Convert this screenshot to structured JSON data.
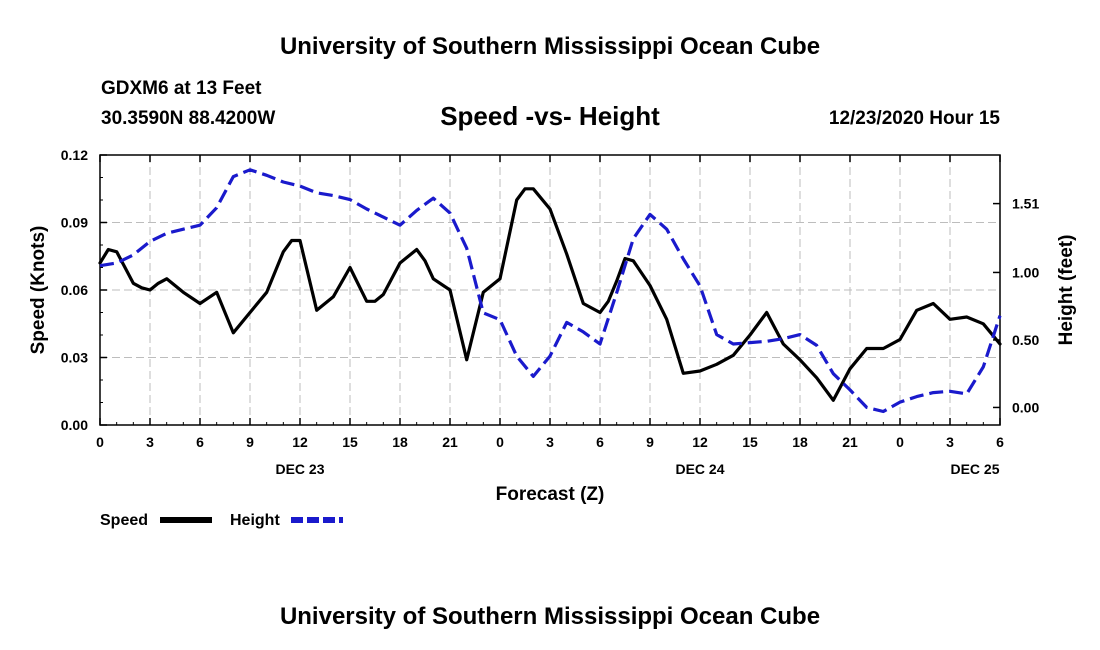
{
  "header": {
    "title": "University of Southern Mississippi Ocean Cube",
    "station": "GDXM6 at 13 Feet",
    "coords": "30.3590N 88.4200W",
    "chart_title": "Speed -vs- Height",
    "datetime": "12/23/2020 Hour 15"
  },
  "footer": {
    "title": "University of Southern Mississippi Ocean Cube"
  },
  "colors": {
    "speed": "#000000",
    "height": "#1a1acc",
    "grid": "#bdbdbd"
  },
  "chart_data": {
    "type": "line",
    "title": "Speed -vs- Height",
    "xlabel": "Forecast (Z)",
    "ylabel": "Speed (Knots)",
    "y2label": "Height (feet)",
    "xlim": [
      0,
      54
    ],
    "ylim": [
      0,
      0.12
    ],
    "y2lim": [
      -0.13,
      1.87
    ],
    "x_ticks": [
      0,
      3,
      6,
      9,
      12,
      15,
      18,
      21,
      24,
      27,
      30,
      33,
      36,
      39,
      42,
      45,
      48,
      51,
      54
    ],
    "x_tick_labels": [
      "0",
      "3",
      "6",
      "9",
      "12",
      "15",
      "18",
      "21",
      "0",
      "3",
      "6",
      "9",
      "12",
      "15",
      "18",
      "21",
      "0",
      "3",
      "6"
    ],
    "date_labels": [
      {
        "x": 12,
        "label": "DEC 23"
      },
      {
        "x": 36,
        "label": "DEC 24"
      },
      {
        "x": 52.5,
        "label": "DEC 25"
      }
    ],
    "y_ticks": [
      0,
      0.03,
      0.06,
      0.09,
      0.12
    ],
    "y_tick_labels": [
      "0.00",
      "0.03",
      "0.06",
      "0.09",
      "0.12"
    ],
    "y2_ticks": [
      0,
      0.5,
      1.0,
      1.51
    ],
    "y2_tick_labels": [
      "0.00",
      "0.50",
      "1.00",
      "1.51"
    ],
    "grid": true,
    "legend": [
      "Speed",
      "Height"
    ],
    "series": [
      {
        "name": "Speed",
        "axis": "left",
        "style": "solid",
        "x": [
          0,
          0.5,
          1,
          1.5,
          2,
          2.5,
          3,
          3.5,
          4,
          5,
          6,
          7,
          8,
          9,
          10,
          11,
          11.5,
          12,
          13,
          14,
          15,
          16,
          16.5,
          17,
          18,
          19,
          19.5,
          20,
          21,
          22,
          23,
          24,
          25,
          25.5,
          26,
          27,
          28,
          29,
          30,
          30.5,
          31,
          31.5,
          32,
          33,
          34,
          35,
          36,
          37,
          38,
          39,
          40,
          41,
          42,
          43,
          44,
          45,
          46,
          47,
          48,
          49,
          50,
          51,
          52,
          53,
          54
        ],
        "values": [
          0.072,
          0.078,
          0.077,
          0.07,
          0.063,
          0.061,
          0.06,
          0.063,
          0.065,
          0.059,
          0.054,
          0.059,
          0.041,
          0.05,
          0.059,
          0.077,
          0.082,
          0.082,
          0.051,
          0.057,
          0.07,
          0.055,
          0.055,
          0.058,
          0.072,
          0.078,
          0.073,
          0.065,
          0.06,
          0.029,
          0.059,
          0.065,
          0.1,
          0.105,
          0.105,
          0.096,
          0.076,
          0.054,
          0.05,
          0.055,
          0.064,
          0.074,
          0.073,
          0.062,
          0.047,
          0.023,
          0.024,
          0.027,
          0.031,
          0.04,
          0.05,
          0.036,
          0.029,
          0.021,
          0.011,
          0.025,
          0.034,
          0.034,
          0.038,
          0.051,
          0.054,
          0.047,
          0.048,
          0.045,
          0.036
        ]
      },
      {
        "name": "Height",
        "axis": "right",
        "style": "dashed",
        "x": [
          0,
          1,
          2,
          3,
          4,
          5,
          6,
          7,
          8,
          9,
          10,
          11,
          12,
          13,
          14,
          15,
          16,
          17,
          18,
          19,
          20,
          21,
          22,
          23,
          24,
          25,
          26,
          27,
          28,
          29,
          30,
          31,
          32,
          33,
          34,
          35,
          36,
          37,
          38,
          39,
          40,
          41,
          42,
          43,
          44,
          45,
          46,
          47,
          48,
          49,
          50,
          51,
          52,
          53,
          54
        ],
        "values": [
          1.05,
          1.07,
          1.13,
          1.23,
          1.29,
          1.32,
          1.35,
          1.48,
          1.71,
          1.76,
          1.72,
          1.67,
          1.64,
          1.59,
          1.57,
          1.54,
          1.47,
          1.41,
          1.35,
          1.46,
          1.55,
          1.44,
          1.18,
          0.7,
          0.65,
          0.38,
          0.23,
          0.38,
          0.63,
          0.56,
          0.47,
          0.85,
          1.25,
          1.43,
          1.32,
          1.1,
          0.9,
          0.54,
          0.47,
          0.48,
          0.49,
          0.51,
          0.54,
          0.46,
          0.25,
          0.13,
          0.0,
          -0.03,
          0.04,
          0.08,
          0.11,
          0.12,
          0.1,
          0.3,
          0.68
        ]
      }
    ]
  }
}
